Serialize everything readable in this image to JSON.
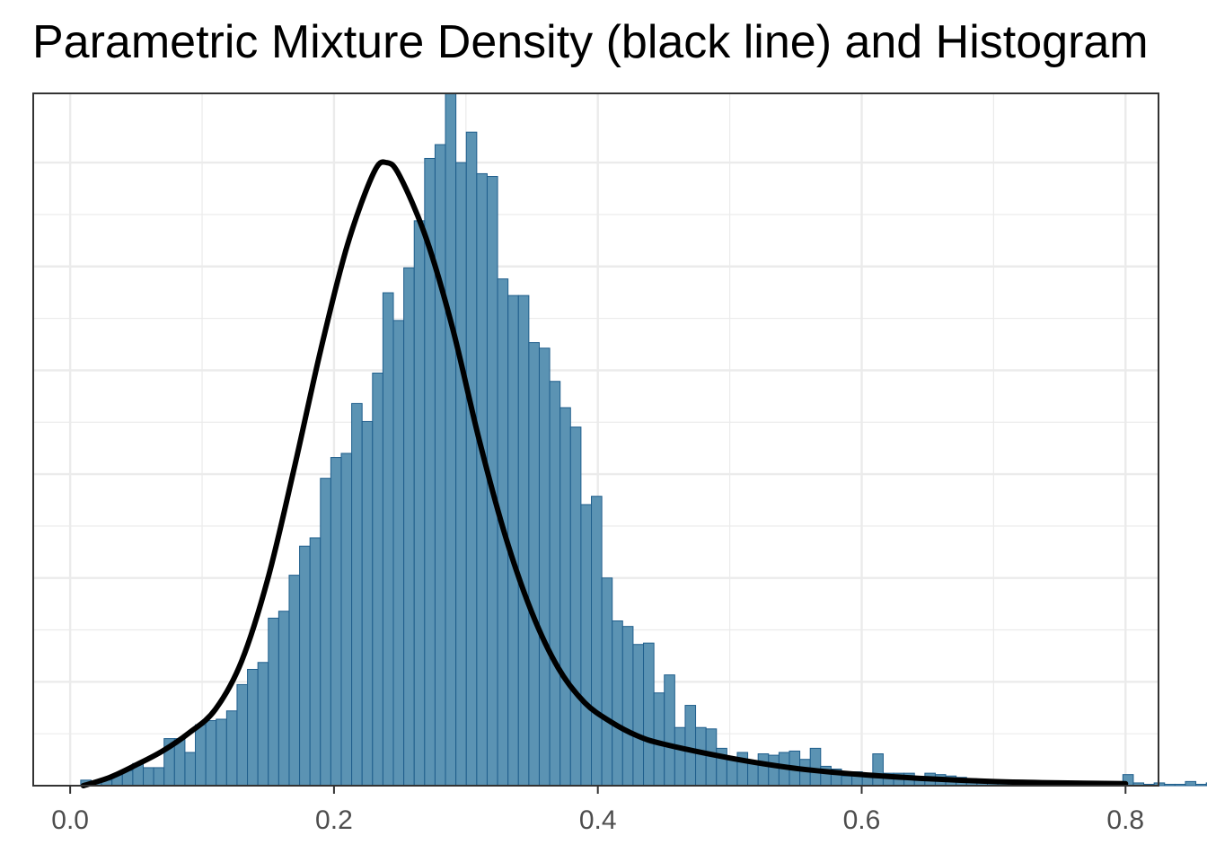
{
  "chart_data": {
    "type": "bar",
    "title": "Parametric Mixture Density (black line) and Histogram",
    "xlabel": "",
    "ylabel": "",
    "xlim": [
      -0.028,
      0.825
    ],
    "ylim": [
      0,
      1.0
    ],
    "x_ticks": [
      0.0,
      0.2,
      0.4,
      0.6,
      0.8
    ],
    "x_tick_labels": [
      "0.0",
      "0.2",
      "0.4",
      "0.6",
      "0.8"
    ],
    "y_gridlines": [
      0.15,
      0.3,
      0.45,
      0.6,
      0.75,
      0.9
    ],
    "y_tick_labels_visible": false,
    "grid": true,
    "legend": "none",
    "colors": {
      "bar_fill": "#5b93b3",
      "bar_stroke": "#1f5e8c",
      "density_line": "#000000",
      "grid": "#ebebeb",
      "panel_border": "#333333"
    },
    "histogram": {
      "bin_start": 0.008,
      "bin_width": 0.0079,
      "values": [
        0.008,
        0.004,
        0.008,
        0.016,
        0.022,
        0.032,
        0.026,
        0.026,
        0.068,
        0.068,
        0.048,
        0.088,
        0.094,
        0.096,
        0.108,
        0.146,
        0.168,
        0.178,
        0.242,
        0.252,
        0.304,
        0.346,
        0.358,
        0.444,
        0.474,
        0.48,
        0.552,
        0.526,
        0.596,
        0.712,
        0.672,
        0.748,
        0.816,
        0.906,
        0.926,
        1.0,
        0.9,
        0.944,
        0.884,
        0.88,
        0.732,
        0.708,
        0.708,
        0.64,
        0.632,
        0.584,
        0.546,
        0.518,
        0.406,
        0.418,
        0.3,
        0.238,
        0.23,
        0.204,
        0.206,
        0.134,
        0.16,
        0.084,
        0.116,
        0.084,
        0.082,
        0.054,
        0.04,
        0.048,
        0.034,
        0.046,
        0.044,
        0.048,
        0.05,
        0.038,
        0.054,
        0.028,
        0.024,
        0.014,
        0.02,
        0.018,
        0.046,
        0.018,
        0.018,
        0.018,
        0.012,
        0.018,
        0.016,
        0.014,
        0.012,
        0.01,
        0.006,
        0.006,
        0.004,
        0.006,
        0.004,
        0.006,
        0.004,
        0.002,
        0.004,
        0.002,
        0.004,
        0.006,
        0.004,
        0.002,
        0.016,
        0.004,
        0.002,
        0.004,
        0.002,
        0.002,
        0.006,
        0.002,
        0.004,
        0.002,
        0.002,
        0.002,
        0.002,
        0.001,
        0.002,
        0.002,
        0.001,
        0.001,
        0.002,
        0.002,
        0.001,
        0.001,
        0.002,
        0.001,
        0.001,
        0.002,
        0.001,
        0.001,
        0.001,
        0.001,
        0.001,
        0.001,
        0.001,
        0.001,
        0.001,
        0.001,
        0.001,
        0.001,
        0.001,
        0.001,
        0.001,
        0.001,
        0.001,
        0.001,
        0.001,
        0.001,
        0.001,
        0.001,
        0.008
      ]
    },
    "density": {
      "x": [
        0.01,
        0.03,
        0.05,
        0.07,
        0.09,
        0.11,
        0.13,
        0.15,
        0.17,
        0.19,
        0.21,
        0.23,
        0.24,
        0.25,
        0.27,
        0.29,
        0.31,
        0.33,
        0.35,
        0.37,
        0.39,
        0.41,
        0.43,
        0.45,
        0.5,
        0.55,
        0.6,
        0.65,
        0.7,
        0.75,
        0.8
      ],
      "y": [
        0.0,
        0.012,
        0.03,
        0.05,
        0.076,
        0.11,
        0.18,
        0.3,
        0.46,
        0.63,
        0.78,
        0.885,
        0.9,
        0.88,
        0.79,
        0.66,
        0.5,
        0.36,
        0.25,
        0.17,
        0.12,
        0.092,
        0.072,
        0.06,
        0.04,
        0.025,
        0.016,
        0.01,
        0.006,
        0.004,
        0.003
      ]
    }
  }
}
